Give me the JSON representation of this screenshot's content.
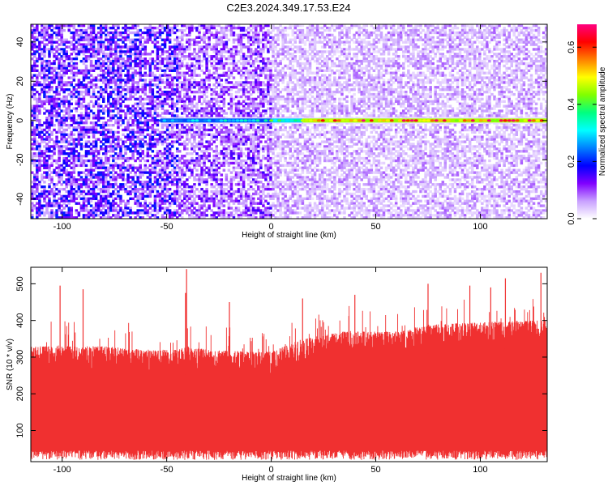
{
  "title": "C2E3.2024.349.17.53.E24",
  "chart_data": [
    {
      "type": "heatmap",
      "title": "C2E3.2024.349.17.53.E24",
      "xlabel": "Height of straight line (km)",
      "ylabel": "Frequency (Hz)",
      "xlim": [
        -115,
        132
      ],
      "ylim": [
        -50,
        49
      ],
      "x_ticks": [
        -100,
        -50,
        0,
        50,
        100
      ],
      "y_ticks": [
        -40,
        -20,
        0,
        20,
        40
      ],
      "colorbar": {
        "label": "Normalized spectral amplitude",
        "range": [
          0,
          0.68
        ],
        "ticks": [
          0.0,
          0.2,
          0.4,
          0.6
        ],
        "colors": [
          "#ffffff",
          "#c8a0ff",
          "#8000ff",
          "#0000ff",
          "#0080ff",
          "#00ffff",
          "#00ff80",
          "#80ff00",
          "#ffff00",
          "#ff8000",
          "#ff0000",
          "#ff0080"
        ]
      },
      "features": [
        {
          "kind": "background_speckle",
          "x_range": [
            -115,
            -45
          ],
          "amplitude": 0.12,
          "description": "dense purple"
        },
        {
          "kind": "background_speckle",
          "x_range": [
            -45,
            0
          ],
          "amplitude": 0.09
        },
        {
          "kind": "background_speckle",
          "x_range": [
            0,
            132
          ],
          "amplitude": 0.05
        },
        {
          "kind": "signal_line",
          "frequency": 0,
          "x_range": [
            -53,
            0
          ],
          "amplitude": 0.3
        },
        {
          "kind": "signal_line",
          "frequency": 0,
          "x_range": [
            0,
            15
          ],
          "amplitude": 0.38
        },
        {
          "kind": "signal_line",
          "frequency": 0,
          "x_range": [
            15,
            132
          ],
          "amplitude": 0.6
        }
      ]
    },
    {
      "type": "line",
      "xlabel": "Height of straight line (km)",
      "ylabel": "SNR (10 * v/v)",
      "xlim": [
        -115,
        132
      ],
      "ylim": [
        15,
        545
      ],
      "x_ticks": [
        -100,
        -50,
        0,
        50,
        100
      ],
      "y_ticks": [
        100,
        200,
        300,
        400,
        500
      ],
      "color": "#f03030",
      "envelope": {
        "x": [
          -115,
          -100,
          -80,
          -60,
          -45,
          -40,
          -30,
          -10,
          0,
          15,
          35,
          60,
          80,
          100,
          120,
          132
        ],
        "lower": [
          45,
          45,
          45,
          45,
          45,
          45,
          45,
          45,
          45,
          45,
          45,
          45,
          45,
          45,
          45,
          45
        ],
        "upper": [
          330,
          330,
          330,
          320,
          320,
          330,
          320,
          315,
          315,
          350,
          370,
          370,
          390,
          395,
          400,
          400
        ]
      },
      "spikes": [
        {
          "x": -40.5,
          "y": 540
        },
        {
          "x": -101,
          "y": 495
        },
        {
          "x": -90,
          "y": 485
        },
        {
          "x": -41,
          "y": 475
        },
        {
          "x": 112,
          "y": 515
        },
        {
          "x": 129,
          "y": 530
        },
        {
          "x": 95,
          "y": 495
        },
        {
          "x": 75,
          "y": 500
        },
        {
          "x": 40,
          "y": 470
        },
        {
          "x": -20,
          "y": 450
        },
        {
          "x": 15,
          "y": 460
        },
        {
          "x": 105,
          "y": 490
        }
      ]
    }
  ]
}
